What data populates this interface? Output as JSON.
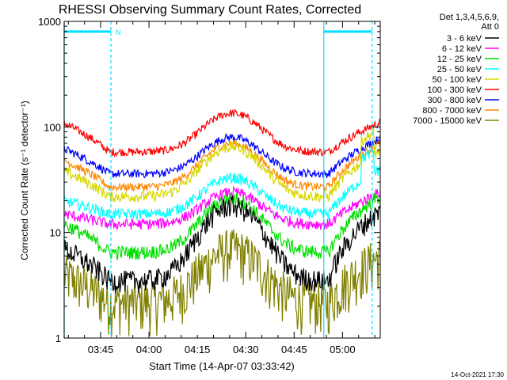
{
  "chart_data": {
    "type": "line",
    "title": "RHESSI Observing Summary Count Rates, Corrected",
    "xlabel": "Start Time (14-Apr-07 03:33:42)",
    "ylabel": "Corrected Count Rate (s⁻¹ detector⁻¹)",
    "yscale": "log",
    "ylim": [
      1,
      1000
    ],
    "xlim_minutes": [
      0,
      98
    ],
    "x_ticks": [
      {
        "label": "03:45",
        "minute": 11.3
      },
      {
        "label": "04:00",
        "minute": 26.3
      },
      {
        "label": "04:15",
        "minute": 41.3
      },
      {
        "label": "04:30",
        "minute": 56.3
      },
      {
        "label": "04:45",
        "minute": 71.3
      },
      {
        "label": "05:00",
        "minute": 86.3
      }
    ],
    "y_ticks": [
      {
        "label": "1",
        "value": 1
      },
      {
        "label": "10",
        "value": 10
      },
      {
        "label": "100",
        "value": 100
      },
      {
        "label": "1000",
        "value": 1000
      }
    ],
    "legend_title": [
      "Det 1,3,4,5,6,9,",
      "Att 0"
    ],
    "annotation_n": "N",
    "timestamp": "14-Oct-2021 17:30",
    "night_markers_minutes": [
      0,
      14.5,
      80.5,
      95.5
    ],
    "flag_bars": [
      {
        "from_minute": 0,
        "to_minute": 14.5,
        "value": 800
      },
      {
        "from_minute": 80.5,
        "to_minute": 95.5,
        "value": 800
      }
    ],
    "series": [
      {
        "name": "3 - 6 keV",
        "color": "#000000",
        "base": 3.5,
        "peak": 18,
        "start": 7,
        "end": 16,
        "noise": 0.08
      },
      {
        "name": "6 - 12 keV",
        "color": "#ff00ff",
        "base": 12,
        "peak": 24,
        "start": 15,
        "end": 24,
        "noise": 0.04
      },
      {
        "name": "12 - 25 keV",
        "color": "#00e000",
        "base": 6.5,
        "peak": 21,
        "start": 12,
        "end": 22,
        "noise": 0.05
      },
      {
        "name": "25 - 50 keV",
        "color": "#00ffff",
        "base": 15,
        "peak": 33,
        "start": 20,
        "end": 40,
        "noise": 0.04
      },
      {
        "name": "50 - 100 keV",
        "color": "#d8d800",
        "base": 22,
        "peak": 65,
        "start": 38,
        "end": 60,
        "noise": 0.04
      },
      {
        "name": "100 - 300 keV",
        "color": "#ff0000",
        "base": 58,
        "peak": 135,
        "start": 108,
        "end": 110,
        "noise": 0.03
      },
      {
        "name": "300 - 800 keV",
        "color": "#0000ff",
        "base": 36,
        "peak": 80,
        "start": 62,
        "end": 78,
        "noise": 0.03
      },
      {
        "name": "800 - 7000 keV",
        "color": "#ff8800",
        "base": 27,
        "peak": 70,
        "start": 48,
        "end": 70,
        "noise": 0.03
      },
      {
        "name": "7000 - 15000 keV",
        "color": "#808000",
        "base": 2.2,
        "peak": 7,
        "start": 4,
        "end": 6,
        "noise": 0.18
      }
    ]
  }
}
